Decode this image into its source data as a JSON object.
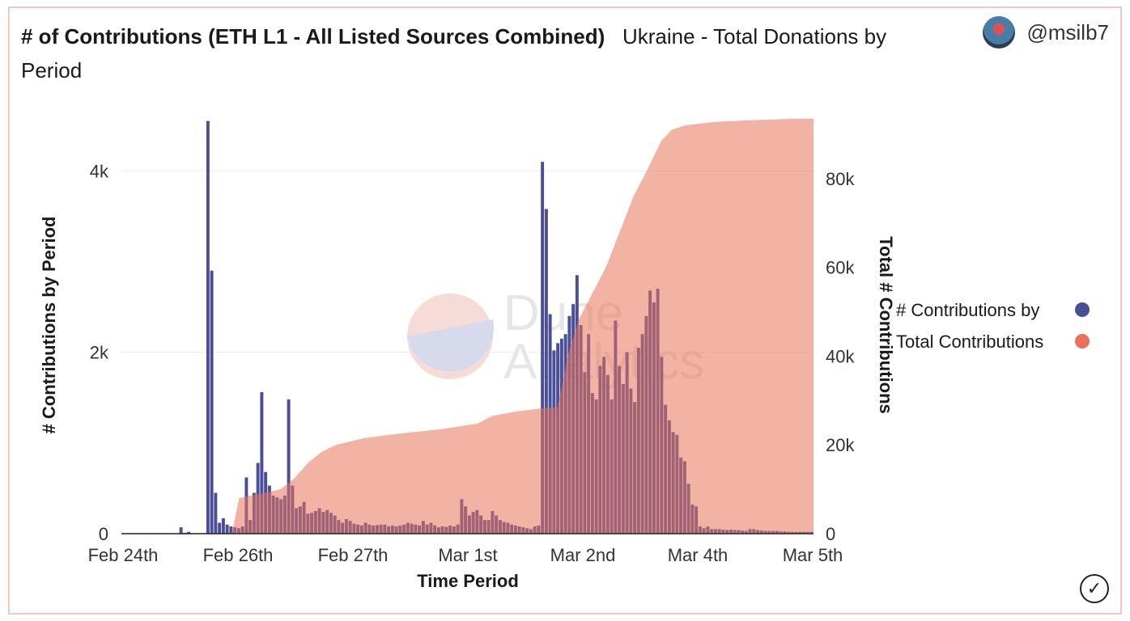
{
  "header": {
    "title": "# of Contributions (ETH L1 - All Listed Sources Combined)",
    "subtitle": "Ukraine - Total Donations by Period"
  },
  "user": {
    "handle": "@msilb7"
  },
  "watermark": {
    "line1": "Dune",
    "line2": "Analytics"
  },
  "colors": {
    "bars": "#4b4f96",
    "area": "#e8735a",
    "border": "#f2c6c2"
  },
  "chart_data": {
    "type": "bar+area",
    "xlabel": "Time Period",
    "ylabel_left": "# Contributions by Period",
    "ylabel_right": "Total # Contributions",
    "x_ticks": [
      "Feb 24th",
      "Feb 26th",
      "Feb 27th",
      "Mar 1st",
      "Mar 2nd",
      "Mar 4th",
      "Mar 5th"
    ],
    "y_left_ticks": [
      "0",
      "2k",
      "4k"
    ],
    "y_right_ticks": [
      "0",
      "20k",
      "40k",
      "60k",
      "80k"
    ],
    "y_left_range": [
      0,
      4600
    ],
    "y_right_range": [
      0,
      94000
    ],
    "legend": {
      "position": "right",
      "entries": [
        "# Contributions by",
        "Total Contributions"
      ]
    },
    "series": [
      {
        "name": "# Contributions by Period",
        "kind": "bar",
        "values": [
          5,
          5,
          5,
          5,
          5,
          5,
          5,
          5,
          5,
          5,
          5,
          5,
          5,
          5,
          5,
          70,
          10,
          20,
          5,
          5,
          5,
          5,
          4550,
          2900,
          450,
          120,
          170,
          100,
          80,
          70,
          60,
          80,
          620,
          150,
          450,
          780,
          1560,
          680,
          530,
          420,
          400,
          380,
          420,
          1480,
          530,
          280,
          300,
          350,
          220,
          230,
          250,
          280,
          240,
          260,
          230,
          200,
          150,
          120,
          160,
          140,
          110,
          100,
          90,
          120,
          100,
          90,
          95,
          100,
          100,
          80,
          90,
          80,
          90,
          100,
          120,
          110,
          100,
          90,
          140,
          100,
          120,
          90,
          70,
          80,
          75,
          90,
          80,
          100,
          380,
          300,
          200,
          240,
          260,
          200,
          150,
          150,
          250,
          200,
          150,
          130,
          120,
          100,
          90,
          80,
          70,
          60,
          50,
          80,
          90,
          4100,
          3580,
          2420,
          2020,
          2100,
          2150,
          2200,
          2400,
          2530,
          2850,
          2300,
          1780,
          2200,
          1550,
          1480,
          1850,
          1950,
          1750,
          1480,
          2350,
          1850,
          1650,
          2000,
          1600,
          1450,
          2050,
          2200,
          2400,
          2680,
          2550,
          2700,
          1950,
          1420,
          1250,
          1120,
          1090,
          840,
          800,
          550,
          320,
          300,
          80,
          60,
          80,
          50,
          50,
          50,
          45,
          40,
          45,
          40,
          40,
          35,
          30,
          50,
          50,
          40,
          35,
          30,
          30,
          30,
          30,
          25,
          25,
          20,
          20,
          20,
          20,
          20,
          20,
          20
        ]
      },
      {
        "name": "Total Contributions",
        "kind": "area",
        "points": [
          [
            0,
            0
          ],
          [
            1.55,
            0
          ],
          [
            1.6,
            300
          ],
          [
            1.7,
            8000
          ],
          [
            2.0,
            9000
          ],
          [
            2.3,
            10000
          ],
          [
            2.5,
            12500
          ],
          [
            2.7,
            16000
          ],
          [
            2.9,
            18500
          ],
          [
            3.1,
            20000
          ],
          [
            3.5,
            21500
          ],
          [
            4.0,
            22500
          ],
          [
            4.6,
            23500
          ],
          [
            4.9,
            24200
          ],
          [
            5.15,
            24800
          ],
          [
            5.35,
            26500
          ],
          [
            5.7,
            27500
          ],
          [
            6.05,
            28200
          ],
          [
            6.3,
            28500
          ],
          [
            6.35,
            32000
          ],
          [
            6.45,
            40000
          ],
          [
            6.6,
            48000
          ],
          [
            6.8,
            54000
          ],
          [
            7.0,
            60000
          ],
          [
            7.2,
            68000
          ],
          [
            7.4,
            76000
          ],
          [
            7.6,
            82000
          ],
          [
            7.8,
            88500
          ],
          [
            7.95,
            91000
          ],
          [
            8.15,
            92000
          ],
          [
            8.6,
            92800
          ],
          [
            9.2,
            93200
          ],
          [
            9.75,
            93500
          ],
          [
            10,
            93500
          ],
          [
            10,
            0
          ]
        ]
      }
    ]
  }
}
